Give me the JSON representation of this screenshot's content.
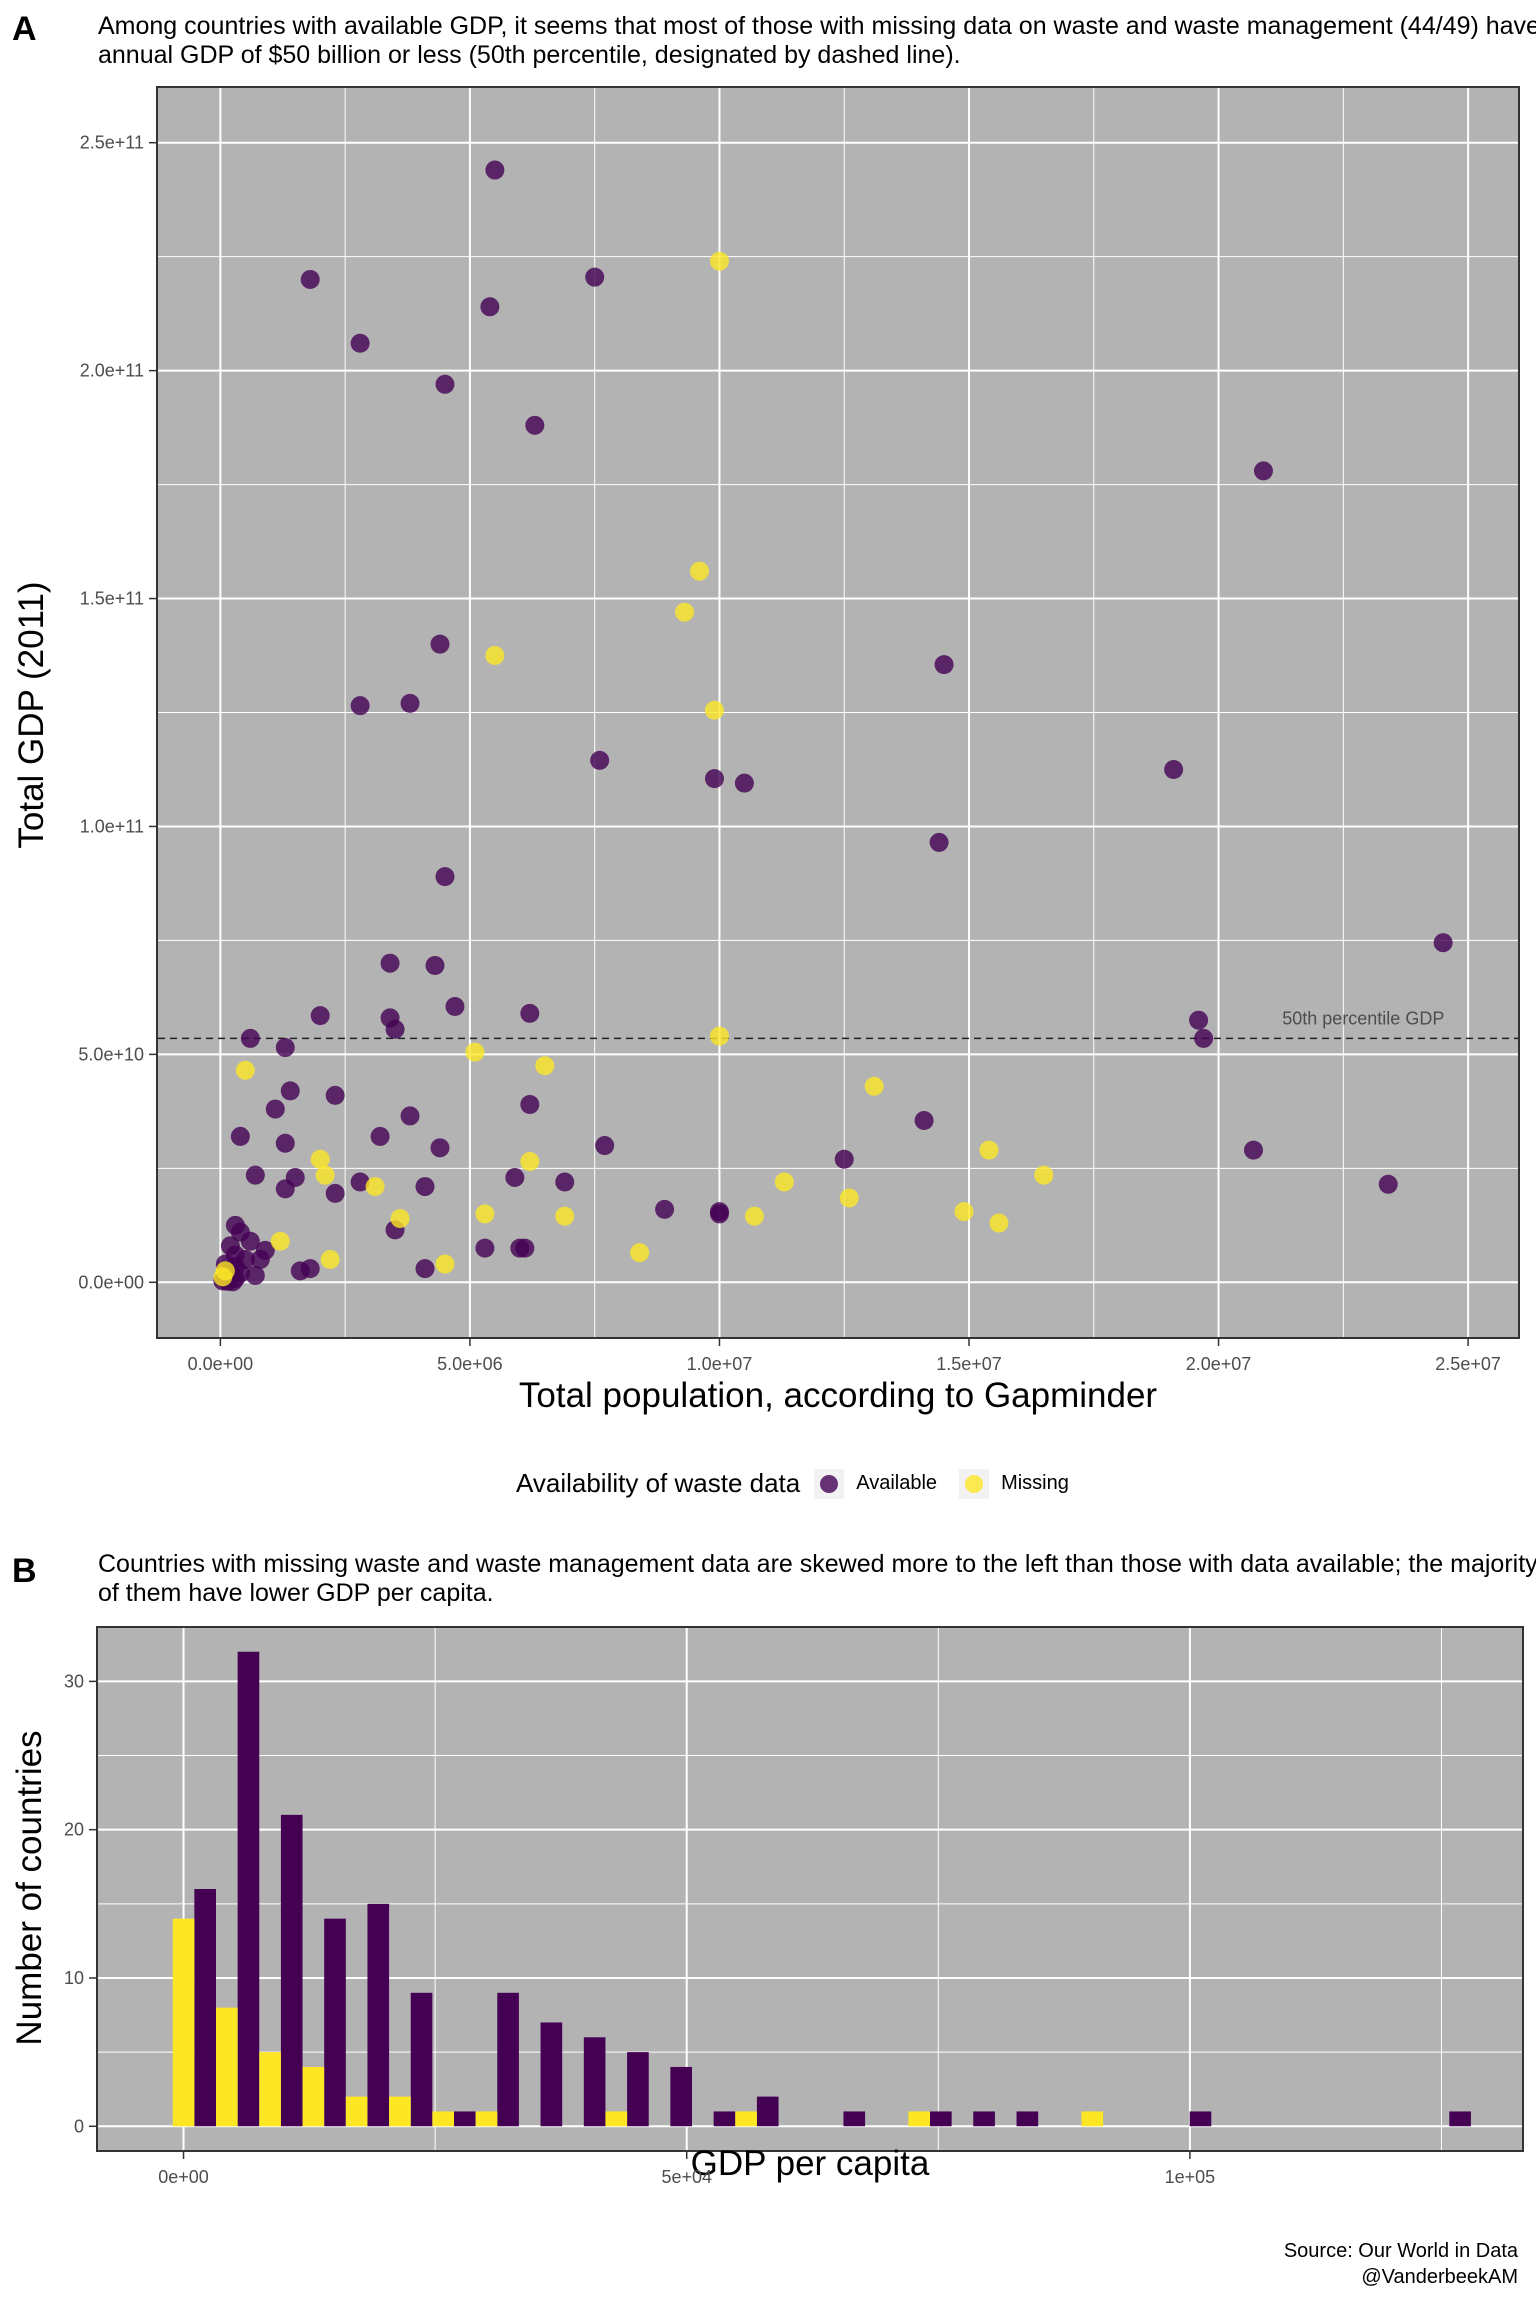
{
  "panel_a": {
    "letter": "A",
    "title": "Among countries with available GDP, it seems that most of those with missing data on waste and waste management (44/49) have annual GDP of $50 billion or less (50th percentile, designated by dashed line).",
    "median_label": "50th percentile GDP"
  },
  "panel_b": {
    "letter": "B",
    "title": "Countries with missing waste and waste management data are skewed more to the left than those with data available; the majority of them have lower GDP per capita."
  },
  "legend": {
    "title": "Availability of waste data",
    "items": [
      {
        "label": "Available",
        "color": "#440154"
      },
      {
        "label": "Missing",
        "color": "#fde725"
      }
    ]
  },
  "source": {
    "line1": "Source: Our World in Data",
    "line2": "@VanderbeekAM"
  },
  "colors": {
    "available": "#440154",
    "missing": "#fde725",
    "panel_bg": "#b3b3b3",
    "grid": "#ffffff"
  },
  "chart_data": [
    {
      "type": "scatter",
      "xlabel": "Total population, according to Gapminder",
      "ylabel": "Total GDP (2011)",
      "xlim": [
        -1250000,
        26000000
      ],
      "ylim": [
        -12000000000,
        262000000000
      ],
      "xticks": [
        0,
        5000000,
        10000000,
        15000000,
        20000000,
        25000000
      ],
      "xtick_labels": [
        "0.0e+00",
        "5.0e+06",
        "1.0e+07",
        "1.5e+07",
        "2.0e+07",
        "2.5e+07"
      ],
      "yticks": [
        0,
        50000000000,
        100000000000,
        150000000000,
        200000000000,
        250000000000
      ],
      "ytick_labels": [
        "0.0e+00",
        "5.0e+10",
        "1.0e+11",
        "1.5e+11",
        "2.0e+11",
        "2.5e+11"
      ],
      "hline": 53500000000,
      "grid": true,
      "legend_position": "bottom",
      "series": [
        {
          "name": "Available",
          "points": [
            [
              5500000,
              244000000000
            ],
            [
              1800000,
              220000000000
            ],
            [
              7500000,
              220500000000
            ],
            [
              5400000,
              214000000000
            ],
            [
              2800000,
              206000000000
            ],
            [
              4500000,
              197000000000
            ],
            [
              6300000,
              188000000000
            ],
            [
              20900000,
              178000000000
            ],
            [
              4400000,
              140000000000
            ],
            [
              14500000,
              135500000000
            ],
            [
              2800000,
              126500000000
            ],
            [
              3800000,
              127000000000
            ],
            [
              7600000,
              114500000000
            ],
            [
              9900000,
              110500000000
            ],
            [
              10500000,
              109500000000
            ],
            [
              19100000,
              112500000000
            ],
            [
              14400000,
              96500000000
            ],
            [
              4500000,
              89000000000
            ],
            [
              24500000,
              74500000000
            ],
            [
              3400000,
              70000000000
            ],
            [
              4300000,
              69500000000
            ],
            [
              4700000,
              60500000000
            ],
            [
              2000000,
              58500000000
            ],
            [
              3400000,
              58000000000
            ],
            [
              6200000,
              59000000000
            ],
            [
              3500000,
              55500000000
            ],
            [
              19600000,
              57500000000
            ],
            [
              19700000,
              53500000000
            ],
            [
              600000,
              53500000000
            ],
            [
              1300000,
              51500000000
            ],
            [
              1400000,
              42000000000
            ],
            [
              2300000,
              41000000000
            ],
            [
              6200000,
              39000000000
            ],
            [
              1100000,
              38000000000
            ],
            [
              3800000,
              36500000000
            ],
            [
              14100000,
              35500000000
            ],
            [
              400000,
              32000000000
            ],
            [
              3200000,
              32000000000
            ],
            [
              1300000,
              30500000000
            ],
            [
              4400000,
              29500000000
            ],
            [
              7700000,
              30000000000
            ],
            [
              20700000,
              29000000000
            ],
            [
              12500000,
              27000000000
            ],
            [
              700000,
              23500000000
            ],
            [
              1500000,
              23000000000
            ],
            [
              5900000,
              23000000000
            ],
            [
              2800000,
              22000000000
            ],
            [
              6900000,
              22000000000
            ],
            [
              23400000,
              21500000000
            ],
            [
              1300000,
              20500000000
            ],
            [
              4100000,
              21000000000
            ],
            [
              2300000,
              19500000000
            ],
            [
              8900000,
              16000000000
            ],
            [
              10000000,
              15500000000
            ],
            [
              10000000,
              15000000000
            ],
            [
              3500000,
              11500000000
            ],
            [
              300000,
              12500000000
            ],
            [
              400000,
              11000000000
            ],
            [
              600000,
              9000000000
            ],
            [
              200000,
              8000000000
            ],
            [
              900000,
              7000000000
            ],
            [
              5300000,
              7500000000
            ],
            [
              6000000,
              7500000000
            ],
            [
              6100000,
              7500000000
            ],
            [
              300000,
              6000000000
            ],
            [
              500000,
              5000000000
            ],
            [
              800000,
              5000000000
            ],
            [
              100000,
              4000000000
            ],
            [
              300000,
              3500000000
            ],
            [
              1800000,
              3000000000
            ],
            [
              4100000,
              3000000000
            ],
            [
              1600000,
              2500000000
            ],
            [
              200000,
              2500000000
            ],
            [
              400000,
              2000000000
            ],
            [
              700000,
              1500000000
            ],
            [
              100000,
              1000000000
            ],
            [
              300000,
              800000000
            ],
            [
              50000,
              300000000
            ],
            [
              150000,
              200000000
            ],
            [
              250000,
              100000000
            ]
          ]
        },
        {
          "name": "Missing",
          "points": [
            [
              10000000,
              224000000000
            ],
            [
              9600000,
              156000000000
            ],
            [
              9300000,
              147000000000
            ],
            [
              5500000,
              137500000000
            ],
            [
              9900000,
              125500000000
            ],
            [
              10000000,
              54000000000
            ],
            [
              5100000,
              50500000000
            ],
            [
              500000,
              46500000000
            ],
            [
              6500000,
              47500000000
            ],
            [
              13100000,
              43000000000
            ],
            [
              15400000,
              29000000000
            ],
            [
              16500000,
              23500000000
            ],
            [
              2000000,
              27000000000
            ],
            [
              6200000,
              26500000000
            ],
            [
              2100000,
              23500000000
            ],
            [
              3100000,
              21000000000
            ],
            [
              11300000,
              22000000000
            ],
            [
              12600000,
              18500000000
            ],
            [
              14900000,
              15500000000
            ],
            [
              10700000,
              14500000000
            ],
            [
              5300000,
              15000000000
            ],
            [
              6900000,
              14500000000
            ],
            [
              3600000,
              14000000000
            ],
            [
              15600000,
              13000000000
            ],
            [
              1200000,
              9000000000
            ],
            [
              8400000,
              6500000000
            ],
            [
              2200000,
              5000000000
            ],
            [
              4500000,
              4000000000
            ],
            [
              100000,
              2500000000
            ],
            [
              50000,
              1200000000
            ]
          ]
        }
      ]
    },
    {
      "type": "bar",
      "xlabel": "GDP per capita",
      "ylabel": "Number of countries",
      "bin_width": 4300,
      "xlim": [
        -8500,
        133000
      ],
      "ylim": [
        -1.6,
        33.6
      ],
      "xticks": [
        0,
        50000,
        100000
      ],
      "xtick_labels": [
        "0e+00",
        "5e+04",
        "1e+05"
      ],
      "yticks": [
        0,
        10,
        20,
        30
      ],
      "ytick_labels": [
        "0",
        "10",
        "20",
        "30"
      ],
      "grid": true,
      "series": [
        {
          "name": "Available",
          "bins": [
            [
              0,
              16
            ],
            [
              4300,
              32
            ],
            [
              8600,
              21
            ],
            [
              12900,
              14
            ],
            [
              17200,
              15
            ],
            [
              21500,
              9
            ],
            [
              25800,
              1
            ],
            [
              30100,
              9
            ],
            [
              34400,
              7
            ],
            [
              38700,
              6
            ],
            [
              43000,
              5
            ],
            [
              47300,
              4
            ],
            [
              51600,
              1
            ],
            [
              55900,
              2
            ],
            [
              64500,
              1
            ],
            [
              73100,
              1
            ],
            [
              77400,
              1
            ],
            [
              81700,
              1
            ],
            [
              98900,
              1
            ],
            [
              124700,
              1
            ]
          ]
        },
        {
          "name": "Missing",
          "bins": [
            [
              0,
              14
            ],
            [
              4300,
              8
            ],
            [
              8600,
              5
            ],
            [
              12900,
              4
            ],
            [
              17200,
              2
            ],
            [
              21500,
              2
            ],
            [
              25800,
              1
            ],
            [
              30100,
              1
            ],
            [
              43000,
              1
            ],
            [
              55900,
              1
            ],
            [
              73100,
              1
            ],
            [
              90300,
              1
            ]
          ]
        }
      ]
    }
  ]
}
